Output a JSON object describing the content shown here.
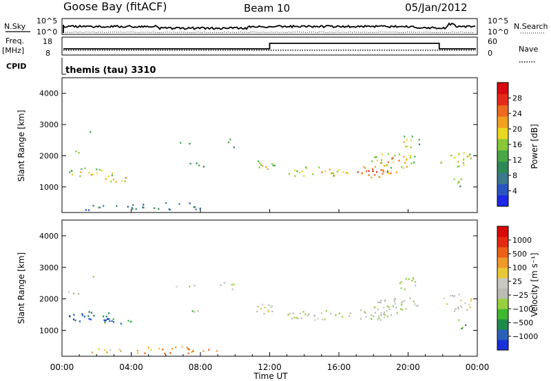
{
  "header": {
    "station": "Goose Bay (fitACF)",
    "beam": "Beam 10",
    "date": "05/Jan/2012"
  },
  "top_panels": {
    "nsky_label": "N.Sky",
    "nsearch_label": "N.Search",
    "noise_ticks": [
      "10^5",
      "10^0"
    ],
    "freq_label": "Freq.",
    "freq_unit": "[MHz]",
    "freq_ticks": [
      "18",
      "8"
    ],
    "nave_label": "Nave",
    "nave_ticks": [
      "60",
      "0"
    ],
    "cpid_label": "CPID",
    "cpid_value": "themis (tau) 3310",
    "freq_step_hours": [
      12.0,
      21.8
    ]
  },
  "chart_data": [
    {
      "type": "heatmap",
      "name": "power",
      "ylabel": "Slant Range [km]",
      "xlabel": "",
      "x_range_hours": [
        0,
        24
      ],
      "ylim": [
        180,
        4500
      ],
      "yticks": [
        "1000",
        "2000",
        "3000",
        "4000"
      ],
      "colorbar": {
        "label": "Power [dB]",
        "ticks": [
          "4",
          "8",
          "12",
          "16",
          "20",
          "24",
          "28"
        ],
        "colors": [
          "#1e28e6",
          "#2a55c0",
          "#3a7a8c",
          "#2e8a55",
          "#48a848",
          "#88c838",
          "#e8d820",
          "#f0a020",
          "#ec6a20",
          "#e42a18",
          "#d60a10"
        ]
      }
    },
    {
      "type": "heatmap",
      "name": "velocity",
      "ylabel": "Slant Range [km]",
      "xlabel": "Time UT",
      "x_range_hours": [
        0,
        24
      ],
      "ylim": [
        180,
        4500
      ],
      "yticks": [
        "1000",
        "2000",
        "3000",
        "4000"
      ],
      "xticks": [
        "00:00",
        "04:00",
        "08:00",
        "12:00",
        "16:00",
        "20:00",
        "00:00"
      ],
      "colorbar": {
        "label": "Velocity [m s⁻¹]",
        "ticks": [
          "1000",
          "500",
          "100",
          "25",
          "−25",
          "−100",
          "−500",
          "−1000"
        ],
        "colors": [
          "#1830d8",
          "#2a60b8",
          "#1e8a4c",
          "#3eb82e",
          "#98d040",
          "#bcbcb4",
          "#c8c8c0",
          "#e8c838",
          "#f09828",
          "#ec6018",
          "#e42a10",
          "#d80808"
        ]
      }
    }
  ]
}
